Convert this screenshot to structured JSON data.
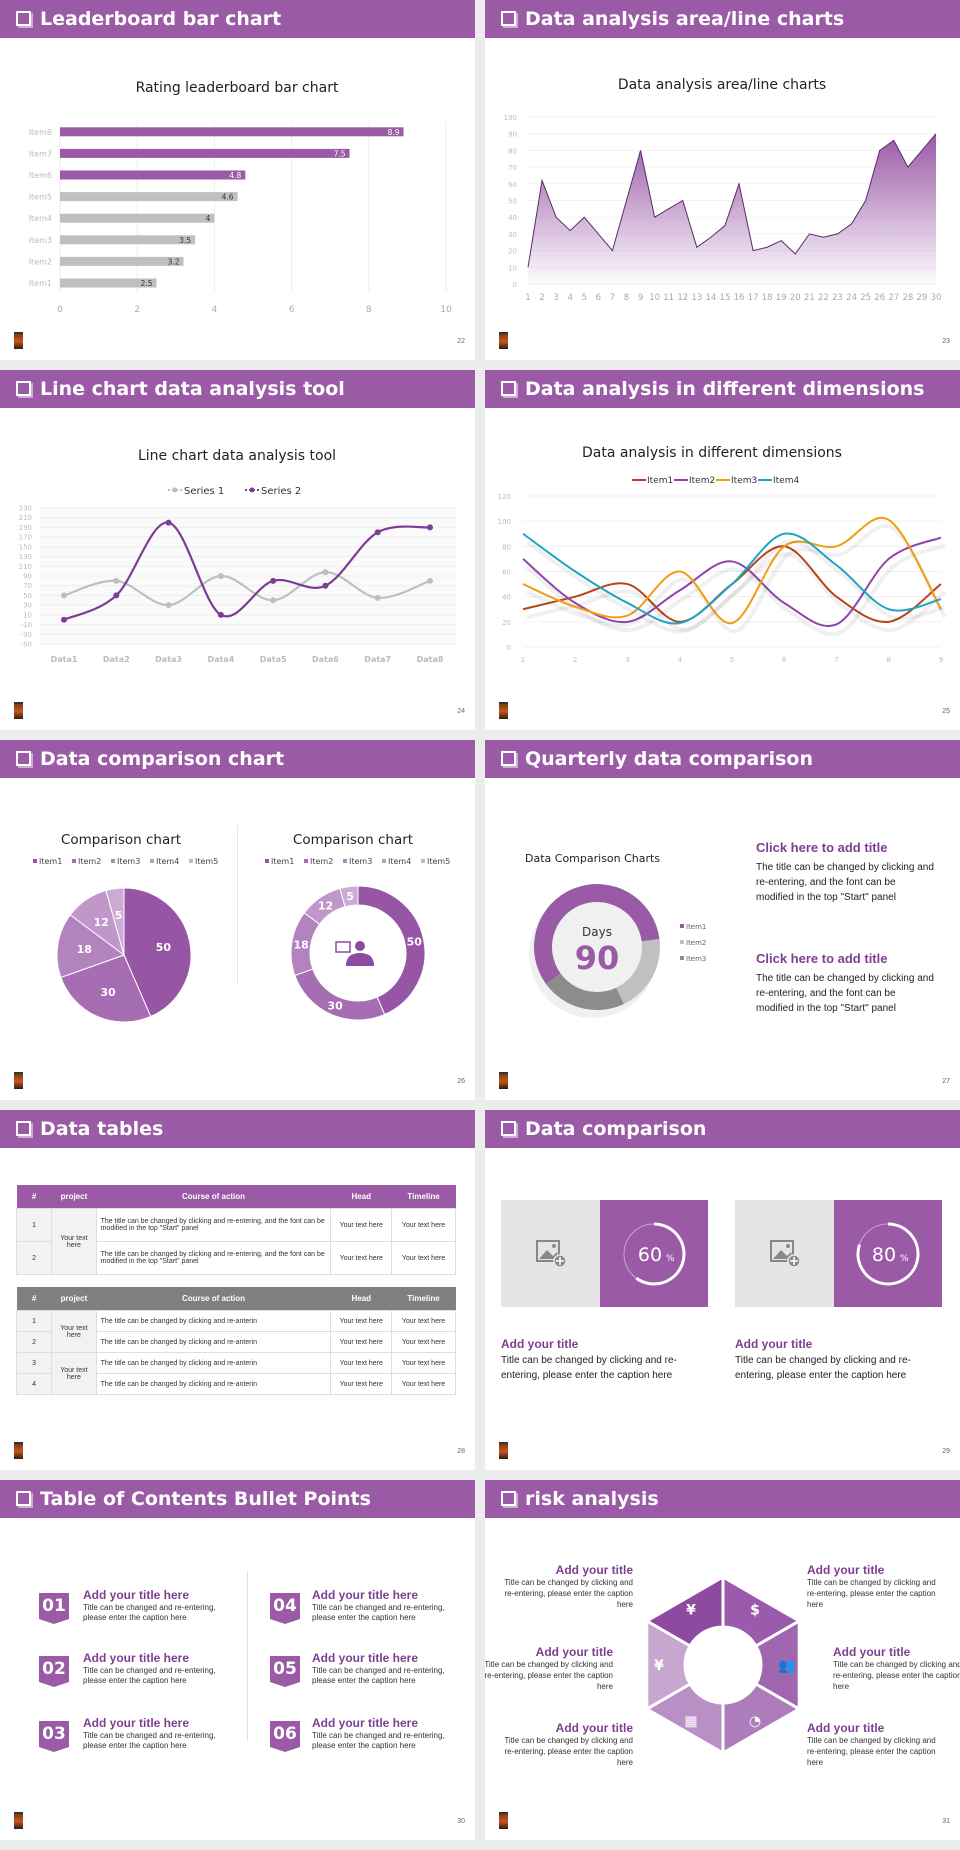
{
  "theme": {
    "accent": "#9a5aa6",
    "dark_accent": "#7e3f92",
    "gray": "#bfbfbf"
  },
  "slides": [
    {
      "title": "Leaderboard bar chart",
      "page": "22"
    },
    {
      "title": "Data analysis area/line charts",
      "page": "23"
    },
    {
      "title": "Line chart data analysis tool",
      "page": "24"
    },
    {
      "title": "Data analysis in different dimensions",
      "page": "25"
    },
    {
      "title": "Data comparison chart",
      "page": "26"
    },
    {
      "title": "Quarterly data comparison",
      "page": "27"
    },
    {
      "title": "Data tables",
      "page": "28"
    },
    {
      "title": "Data comparison",
      "page": "29"
    },
    {
      "title": "Table of Contents Bullet Points",
      "page": "30"
    },
    {
      "title": "risk analysis",
      "page": "31"
    }
  ],
  "chart_data": [
    {
      "type": "bar",
      "orientation": "horizontal",
      "title": "Rating leaderboard bar chart",
      "categories": [
        "Item1",
        "Item2",
        "Item3",
        "Item4",
        "Item5",
        "Item6",
        "Item7",
        "Item8"
      ],
      "values": [
        2.5,
        3.2,
        3.5,
        4,
        4.6,
        4.8,
        7.5,
        8.9
      ],
      "xlim": [
        0,
        10
      ],
      "xticks": [
        0,
        2,
        4,
        6,
        8,
        10
      ],
      "highlighted": [
        "Item6",
        "Item7",
        "Item8"
      ],
      "highlight_color": "#9a5aa6",
      "base_color": "#bfbfbf",
      "grid": true
    },
    {
      "type": "area",
      "title": "Data analysis area/line charts",
      "x": [
        1,
        2,
        3,
        4,
        5,
        6,
        7,
        8,
        9,
        10,
        11,
        12,
        13,
        14,
        15,
        16,
        17,
        18,
        19,
        20,
        21,
        22,
        23,
        24,
        25,
        26,
        27,
        28,
        29,
        30
      ],
      "values": [
        10,
        62,
        40,
        32,
        40,
        30,
        20,
        50,
        80,
        40,
        45,
        50,
        22,
        28,
        35,
        60,
        20,
        22,
        26,
        18,
        30,
        28,
        30,
        36,
        50,
        80,
        86,
        70,
        80,
        90
      ],
      "ylim": [
        0,
        100
      ],
      "yticks": [
        0,
        10,
        20,
        30,
        40,
        50,
        60,
        70,
        80,
        90,
        100
      ],
      "color": "#9a5aa6",
      "line_color": "#5b2a6e",
      "grid": true
    },
    {
      "type": "line",
      "smooth": true,
      "title": "Line chart data analysis tool",
      "categories": [
        "Data1",
        "Data2",
        "Data3",
        "Data4",
        "Data5",
        "Data6",
        "Data7",
        "Data8"
      ],
      "series": [
        {
          "name": "Series 1",
          "values": [
            50,
            80,
            30,
            90,
            40,
            98,
            45,
            80
          ],
          "color": "#bfbfbf"
        },
        {
          "name": "Series 2",
          "values": [
            0,
            50,
            200,
            10,
            80,
            70,
            180,
            190
          ],
          "color": "#7d3c98"
        }
      ],
      "ylim": [
        -50,
        230
      ],
      "yticks": [
        -50,
        -30,
        -10,
        10,
        30,
        50,
        70,
        90,
        110,
        130,
        150,
        170,
        190,
        210,
        230
      ],
      "legend": "top",
      "grid": true
    },
    {
      "type": "line",
      "smooth": true,
      "title": "Data analysis in different dimensions",
      "x": [
        1,
        2,
        3,
        4,
        5,
        6,
        7,
        8,
        9
      ],
      "series": [
        {
          "name": "Item1",
          "values": [
            30,
            40,
            50,
            20,
            50,
            80,
            40,
            20,
            50
          ],
          "color": "#b5461a"
        },
        {
          "name": "Item2",
          "values": [
            70,
            35,
            20,
            45,
            68,
            35,
            18,
            70,
            87
          ],
          "color": "#8e44ad"
        },
        {
          "name": "Item3",
          "values": [
            50,
            32,
            25,
            60,
            19,
            80,
            80,
            101,
            30
          ],
          "color": "#f39c12"
        },
        {
          "name": "Item4",
          "values": [
            90,
            60,
            35,
            19,
            50,
            90,
            65,
            30,
            38
          ],
          "color": "#1fa5c4"
        }
      ],
      "ylim": [
        0,
        120
      ],
      "yticks": [
        0,
        20,
        40,
        60,
        80,
        100,
        120
      ],
      "legend": "top",
      "grid": true
    },
    {
      "type": "pie",
      "title": "Comparison chart",
      "categories": [
        "Item1",
        "Item2",
        "Item3",
        "Item4",
        "Item5"
      ],
      "values": [
        50,
        30,
        18,
        12,
        5
      ],
      "colors": [
        "#9656a5",
        "#a66db3",
        "#b383be",
        "#bf97c9",
        "#cbaad3"
      ],
      "legend": "top"
    },
    {
      "type": "donut",
      "title": "Comparison chart",
      "categories": [
        "Item1",
        "Item2",
        "Item3",
        "Item4",
        "Item5"
      ],
      "values": [
        50,
        30,
        18,
        12,
        5
      ],
      "colors": [
        "#9656a5",
        "#a66db3",
        "#b383be",
        "#bf97c9",
        "#cbaad3"
      ],
      "legend": "top",
      "center_icon": "presenter-icon"
    },
    {
      "type": "donut",
      "title": "Data Comparison Charts",
      "categories": [
        "Item1",
        "Item2",
        "Item3"
      ],
      "values": [
        58,
        20,
        22
      ],
      "colors": [
        "#9a5aa6",
        "#c0c0c0",
        "#8c8c8c"
      ],
      "legend": "right",
      "center_label": "Days",
      "center_value": "90"
    }
  ],
  "quarterly": {
    "blocks": [
      {
        "title": "Click here to add title",
        "text": "The title can be changed by clicking and re-entering, and the font can be modified in the top \"Start\" panel"
      },
      {
        "title": "Click here to add title",
        "text": "The title can be changed by clicking and re-entering, and the font can be modified in the top \"Start\" panel"
      }
    ]
  },
  "tables": [
    {
      "header_color": "#9a5aa6",
      "headers": [
        "#",
        "project",
        "Course of action",
        "Head",
        "Timeline"
      ],
      "groups": [
        {
          "project": "Your text here",
          "rows": [
            {
              "num": "1",
              "action": " The title can be changed by clicking and re-entering, and the font can be modified in the top \"Start\" panel",
              "head": "Your text here",
              "timeline": "Your text here"
            },
            {
              "num": "2",
              "action": "The title can be changed by clicking and re-entering, and the font can be modified in the top \"Start\" panel",
              "head": "Your text here",
              "timeline": "Your text here"
            }
          ]
        }
      ]
    },
    {
      "header_color": "#808080",
      "headers": [
        "#",
        "project",
        "Course of action",
        "Head",
        "Timeline"
      ],
      "groups": [
        {
          "project": "Your text here",
          "rows": [
            {
              "num": "1",
              "action": "The title can be changed by clicking and re-anterin",
              "head": "Your text here",
              "timeline": "Your text here"
            },
            {
              "num": "2",
              "action": "The title can be changed by clicking and re-anterin",
              "head": "Your text here",
              "timeline": "Your text here"
            }
          ]
        },
        {
          "project": "Your text here",
          "rows": [
            {
              "num": "3",
              "action": "The title can be changed by clicking and re-anterin",
              "head": "Your text here",
              "timeline": "Your text here"
            },
            {
              "num": "4",
              "action": "The title can be changed by clicking and re-anterin",
              "head": "Your text here",
              "timeline": "Your text here"
            }
          ]
        }
      ]
    }
  ],
  "comparison": {
    "items": [
      {
        "percent": 60,
        "value": "60",
        "unit": "%",
        "title": "Add your title",
        "text": "Title can be changed by clicking and re-entering, please enter the caption here",
        "image_icon": "add-image-icon"
      },
      {
        "percent": 80,
        "value": "80",
        "unit": "%",
        "title": "Add your title",
        "text": "Title can be changed by clicking and re-entering, please enter the caption here",
        "image_icon": "add-image-icon"
      }
    ]
  },
  "toc": {
    "items": [
      {
        "num": "01",
        "title": "Add your title here",
        "text": "Title can be changed and re-entering, please enter the caption here"
      },
      {
        "num": "02",
        "title": "Add your title here",
        "text": "Title can be changed and re-entering, please enter the caption here"
      },
      {
        "num": "03",
        "title": "Add your title here",
        "text": "Title can be changed and re-entering, please enter the caption here"
      },
      {
        "num": "04",
        "title": "Add your title here",
        "text": "Title can be changed and re-entering, please enter the caption here"
      },
      {
        "num": "05",
        "title": "Add your title here",
        "text": "Title can be changed and re-entering, please enter the caption here"
      },
      {
        "num": "06",
        "title": "Add your title here",
        "text": "Title can be changed and re-entering, please enter the caption here"
      }
    ]
  },
  "risk": {
    "items": [
      {
        "title": "Add your title",
        "text": "Title can be changed by clicking and re-entering, please enter the caption here",
        "icon": "money-bag-icon",
        "glyph": "¥"
      },
      {
        "title": "Add your title",
        "text": "Title can be changed by clicking and re-entering, please enter the caption here",
        "icon": "coins-icon",
        "glyph": "$"
      },
      {
        "title": "Add your title",
        "text": "Title can be changed by clicking and re-entering, please enter the caption here",
        "icon": "people-icon",
        "glyph": "👥"
      },
      {
        "title": "Add your title",
        "text": "Title can be changed by clicking and re-entering, please enter the caption here",
        "icon": "pie-chart-icon",
        "glyph": "◔"
      },
      {
        "title": "Add your title",
        "text": "Title can be changed by clicking and re-entering, please enter the caption here",
        "icon": "building-icon",
        "glyph": "▦"
      },
      {
        "title": "Add your title",
        "text": "Title can be changed by clicking and re-entering, please enter the caption here",
        "icon": "hand-money-icon",
        "glyph": "¥"
      }
    ]
  }
}
